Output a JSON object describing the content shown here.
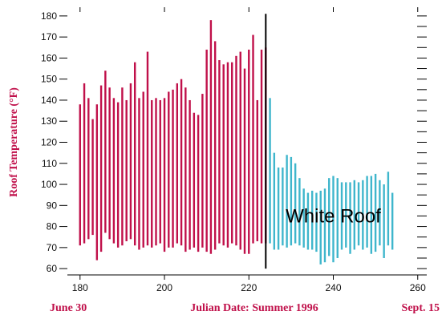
{
  "colors": {
    "before": "#c0104a",
    "after": "#3fb6cc",
    "label": "#c0104a",
    "axis": "#000000",
    "marker": "#000000"
  },
  "chart_data": {
    "type": "bar",
    "chart_kind": "daily high-low range bars",
    "ylabel": "Roof Temperature (°F)",
    "xlabel": "Julian Date: Summer 1996",
    "x_start_label": "June 30",
    "x_end_label": "Sept. 15",
    "xlim": [
      177,
      261
    ],
    "ylim": [
      57,
      183
    ],
    "x_ticks": [
      180,
      200,
      220,
      240,
      260
    ],
    "y_ticks": [
      60,
      70,
      80,
      90,
      100,
      110,
      120,
      130,
      140,
      150,
      160,
      170,
      180
    ],
    "top_minor_ticks": [
      180,
      200,
      220,
      240,
      260
    ],
    "right_minor_ticks": [
      57,
      60,
      65,
      70,
      75,
      80,
      85,
      90,
      95,
      100,
      105,
      110,
      115,
      120,
      125,
      130,
      135,
      140,
      145,
      150,
      155,
      160,
      165,
      170,
      175,
      180
    ],
    "marker_day": 224,
    "annotation": "White Roof",
    "series": [
      {
        "name": "",
        "days": [
          180,
          181,
          182,
          183,
          184,
          185,
          186,
          187,
          188,
          189,
          190,
          191,
          192,
          193,
          194,
          195,
          196,
          197,
          198,
          199,
          200,
          201,
          202,
          203,
          204,
          205,
          206,
          207,
          208,
          209,
          210,
          211,
          212,
          213,
          214,
          215,
          216,
          217,
          218,
          219,
          220,
          221,
          222,
          223,
          224
        ],
        "high": [
          138,
          148,
          141,
          131,
          138,
          147,
          154,
          146,
          141,
          139,
          146,
          140,
          148,
          158,
          141,
          144,
          163,
          140,
          141,
          140,
          141,
          144,
          145,
          148,
          150,
          146,
          140,
          134,
          133,
          143,
          164,
          178,
          168,
          159,
          157,
          158,
          158,
          161,
          163,
          155,
          164,
          171,
          140,
          164,
          165
        ],
        "low": [
          71,
          72,
          74,
          76,
          64,
          68,
          77,
          74,
          72,
          70,
          71,
          73,
          74,
          71,
          69,
          70,
          71,
          70,
          71,
          72,
          68,
          70,
          70,
          72,
          71,
          68,
          69,
          70,
          68,
          70,
          68,
          67,
          69,
          72,
          71,
          70,
          72,
          71,
          69,
          67,
          67,
          72,
          73,
          72,
          72
        ]
      },
      {
        "name": "",
        "days": [
          225,
          226,
          227,
          228,
          229,
          230,
          231,
          232,
          233,
          234,
          235,
          236,
          237,
          238,
          239,
          240,
          241,
          242,
          243,
          244,
          245,
          246,
          247,
          248,
          249,
          250,
          251,
          252,
          253,
          254
        ],
        "high": [
          141,
          115,
          108,
          108,
          114,
          113,
          110,
          103,
          98,
          96,
          97,
          96,
          97,
          98,
          103,
          104,
          103,
          101,
          101,
          101,
          102,
          101,
          102,
          104,
          104,
          105,
          102,
          100,
          106,
          96
        ],
        "low": [
          72,
          69,
          69,
          71,
          70,
          71,
          72,
          71,
          70,
          69,
          69,
          68,
          62,
          63,
          66,
          63,
          65,
          69,
          70,
          67,
          69,
          71,
          69,
          70,
          67,
          68,
          71,
          65,
          71,
          69
        ]
      }
    ]
  }
}
